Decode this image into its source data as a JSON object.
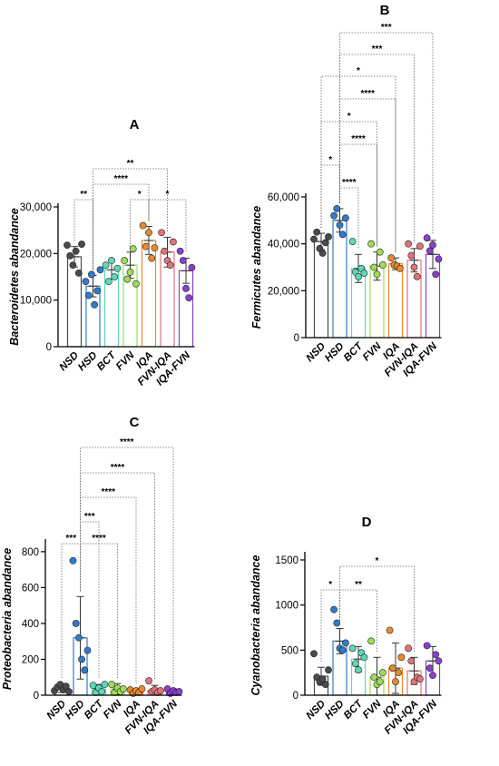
{
  "x_labels": [
    "NSD",
    "HSD",
    "BCT",
    "FVN",
    "IQA",
    "FVN-IQA",
    "IQA-FVN"
  ],
  "colors": {
    "NSD": "#4a4a4a",
    "HSD": "#2f7cc9",
    "BCT": "#5dd8b5",
    "FVN": "#9edc55",
    "IQA": "#e88a2c",
    "FVN-IQA": "#e0737a",
    "IQA-FVN": "#8a3fcf"
  },
  "chart_data": [
    {
      "panel": "A",
      "type": "bar",
      "ylabel": "Bacteroidetes abandance",
      "ylim": [
        0,
        30000
      ],
      "yticks": [
        0,
        10000,
        20000,
        30000
      ],
      "ytick_labels": [
        "0",
        "10,000",
        "20,000",
        "30,000"
      ],
      "means": [
        19300,
        13000,
        16500,
        17500,
        22800,
        20300,
        16300
      ],
      "errors": [
        2200,
        2300,
        2000,
        2800,
        3000,
        3200,
        2700
      ],
      "points": [
        [
          21800,
          19500,
          17500,
          20500,
          15800,
          22000
        ],
        [
          14000,
          11000,
          15500,
          9000,
          12000,
          16500
        ],
        [
          17500,
          14000,
          18500,
          15000,
          16800
        ],
        [
          18500,
          14500,
          16000,
          21000,
          13500
        ],
        [
          26000,
          21500,
          24500,
          19000,
          21200
        ],
        [
          24500,
          20500,
          18500,
          17500,
          22500
        ],
        [
          20500,
          18500,
          12500,
          10500,
          17000
        ]
      ],
      "significance": [
        {
          "from": 0,
          "to": 1,
          "label": "**"
        },
        {
          "from": 1,
          "to": 4,
          "label": "****"
        },
        {
          "from": 1,
          "to": 5,
          "label": "**"
        },
        {
          "from": 3,
          "to": 4,
          "label": "*"
        },
        {
          "from": 4,
          "to": 6,
          "label": "*"
        }
      ]
    },
    {
      "panel": "B",
      "type": "bar",
      "ylabel": "Fermicutes abandance",
      "ylim": [
        0,
        60000
      ],
      "yticks": [
        0,
        20000,
        40000,
        60000
      ],
      "ytick_labels": [
        "0",
        "20,000",
        "40,000",
        "60,000"
      ],
      "means": [
        41000,
        50000,
        29500,
        30500,
        31500,
        33000,
        35500
      ],
      "errors": [
        3500,
        5000,
        6000,
        6000,
        2500,
        5000,
        6000
      ],
      "points": [
        [
          42000,
          45000,
          38000,
          36000,
          40500,
          43000
        ],
        [
          52000,
          55000,
          48000,
          44000,
          51000
        ],
        [
          41000,
          28000,
          26000,
          29500,
          27500
        ],
        [
          40000,
          30000,
          27000,
          36500,
          31000
        ],
        [
          34000,
          31000,
          30500,
          29500
        ],
        [
          40000,
          35000,
          30000,
          26000,
          39000
        ],
        [
          42500,
          37000,
          39500,
          27000,
          33500
        ]
      ],
      "significance": [
        {
          "from": 0,
          "to": 1,
          "label": "*"
        },
        {
          "from": 1,
          "to": 2,
          "label": "****"
        },
        {
          "from": 1,
          "to": 3,
          "label": "****"
        },
        {
          "from": 0,
          "to": 3,
          "label": "*"
        },
        {
          "from": 1,
          "to": 4,
          "label": "****"
        },
        {
          "from": 0,
          "to": 4,
          "label": "*"
        },
        {
          "from": 1,
          "to": 5,
          "label": "***"
        },
        {
          "from": 1,
          "to": 6,
          "label": "***"
        }
      ]
    },
    {
      "panel": "C",
      "type": "bar",
      "ylabel": "Proteobacteria abandance",
      "ylim": [
        0,
        850
      ],
      "yticks": [
        0,
        200,
        400,
        600,
        800
      ],
      "ytick_labels": [
        "0",
        "200",
        "400",
        "600",
        "800"
      ],
      "means": [
        40,
        320,
        35,
        35,
        20,
        25,
        20
      ],
      "errors": [
        25,
        230,
        25,
        30,
        15,
        30,
        15
      ],
      "points": [
        [
          25,
          45,
          60,
          30,
          50,
          20
        ],
        [
          750,
          400,
          320,
          200,
          140,
          250
        ],
        [
          55,
          15,
          40,
          20,
          60
        ],
        [
          60,
          15,
          40,
          20,
          35
        ],
        [
          30,
          10,
          25,
          15,
          35
        ],
        [
          80,
          20,
          30,
          15,
          25
        ],
        [
          35,
          10,
          25,
          15,
          20
        ]
      ],
      "significance": [
        {
          "from": 0,
          "to": 1,
          "label": "***"
        },
        {
          "from": 1,
          "to": 2,
          "label": "***"
        },
        {
          "from": 1,
          "to": 3,
          "label": "****"
        },
        {
          "from": 1,
          "to": 4,
          "label": "****"
        },
        {
          "from": 1,
          "to": 5,
          "label": "****"
        },
        {
          "from": 1,
          "to": 6,
          "label": "****"
        }
      ]
    },
    {
      "panel": "D",
      "type": "bar",
      "ylabel": "Cyanobacteria abandance",
      "ylim": [
        0,
        1550
      ],
      "yticks": [
        0,
        500,
        1000,
        1500
      ],
      "ytick_labels": [
        "0",
        "500",
        "1000",
        "1500"
      ],
      "means": [
        210,
        600,
        400,
        200,
        300,
        270,
        380
      ],
      "errors": [
        100,
        140,
        140,
        220,
        280,
        150,
        160
      ],
      "points": [
        [
          460,
          200,
          150,
          180,
          120,
          280
        ],
        [
          950,
          800,
          520,
          500,
          580
        ],
        [
          520,
          350,
          280,
          470,
          420
        ],
        [
          600,
          200,
          120,
          150,
          250
        ],
        [
          720,
          300,
          150,
          250,
          420
        ],
        [
          520,
          380,
          150,
          200,
          180
        ],
        [
          550,
          300,
          220,
          450,
          380
        ]
      ],
      "significance": [
        {
          "from": 0,
          "to": 1,
          "label": "*"
        },
        {
          "from": 1,
          "to": 3,
          "label": "**"
        },
        {
          "from": 1,
          "to": 5,
          "label": "*"
        }
      ]
    }
  ]
}
